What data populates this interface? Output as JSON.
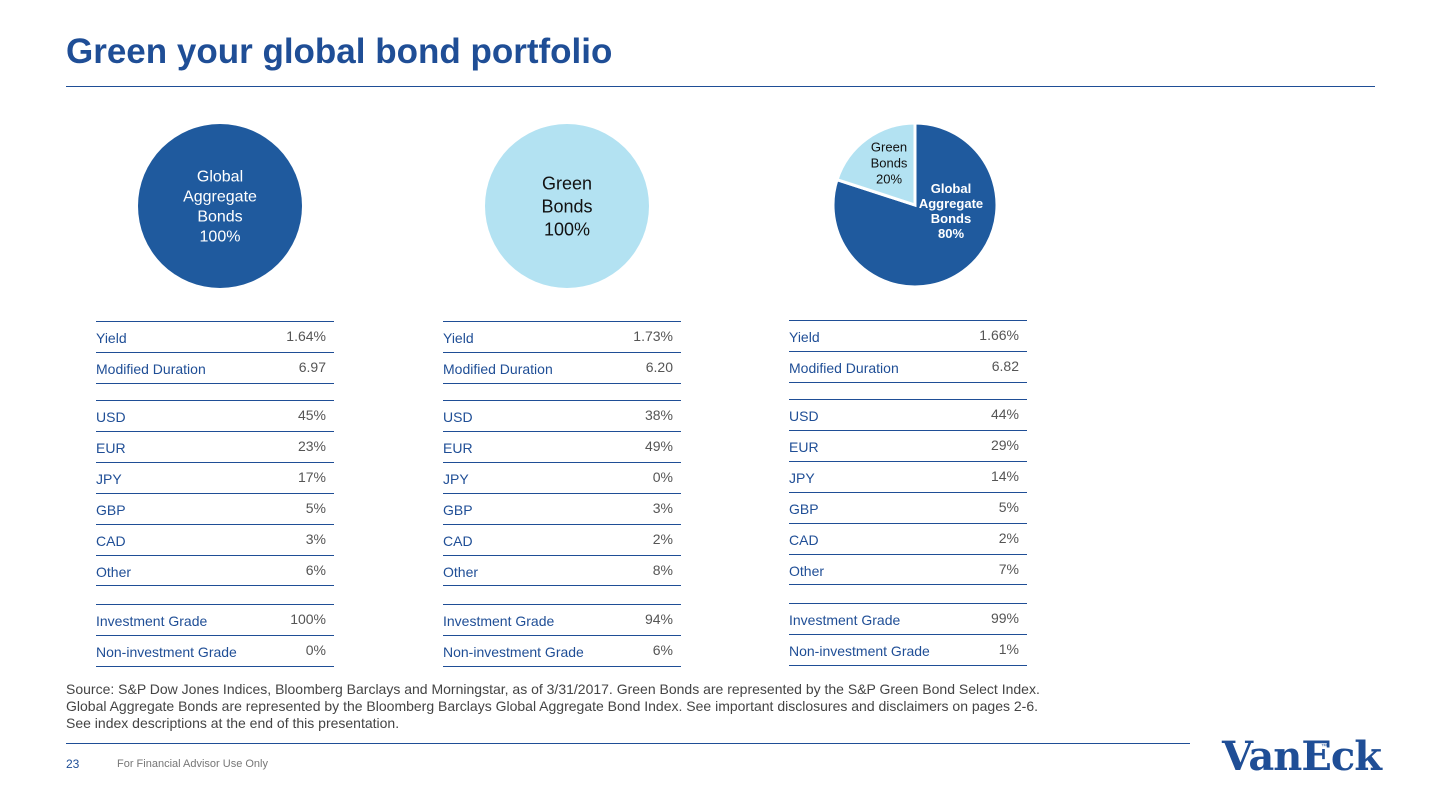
{
  "title": "Green your global bond portfolio",
  "colors": {
    "dark_blue": "#1f5a9e",
    "light_blue": "#b3e2f2",
    "text_blue": "#1f4e96"
  },
  "pies": [
    {
      "type": "pie",
      "slices": [
        {
          "label_lines": [
            "Global",
            "Aggregate",
            "Bonds",
            "100%"
          ],
          "value": 100,
          "color": "#1f5a9e"
        }
      ]
    },
    {
      "type": "pie",
      "slices": [
        {
          "label_lines": [
            "Green",
            "Bonds",
            "100%"
          ],
          "value": 100,
          "color": "#b3e2f2"
        }
      ]
    },
    {
      "type": "pie",
      "slices": [
        {
          "label_lines": [
            "Global",
            "Aggregate",
            "Bonds",
            "80%"
          ],
          "value": 80,
          "color": "#1f5a9e"
        },
        {
          "label_lines": [
            "Green",
            "Bonds",
            "20%"
          ],
          "value": 20,
          "color": "#b3e2f2"
        }
      ]
    }
  ],
  "tables": [
    {
      "metrics": [
        {
          "label": "Yield",
          "value": "1.64%"
        },
        {
          "label": "Modified Duration",
          "value": "6.97"
        }
      ],
      "currencies": [
        {
          "label": "USD",
          "value": "45%"
        },
        {
          "label": "EUR",
          "value": "23%"
        },
        {
          "label": "JPY",
          "value": "17%"
        },
        {
          "label": "GBP",
          "value": "5%"
        },
        {
          "label": "CAD",
          "value": "3%"
        },
        {
          "label": "Other",
          "value": "6%"
        }
      ],
      "grades": [
        {
          "label": "Investment Grade",
          "value": "100%"
        },
        {
          "label": "Non-investment Grade",
          "value": "0%"
        }
      ]
    },
    {
      "metrics": [
        {
          "label": "Yield",
          "value": "1.73%"
        },
        {
          "label": "Modified Duration",
          "value": "6.20"
        }
      ],
      "currencies": [
        {
          "label": "USD",
          "value": "38%"
        },
        {
          "label": "EUR",
          "value": "49%"
        },
        {
          "label": "JPY",
          "value": "0%"
        },
        {
          "label": "GBP",
          "value": "3%"
        },
        {
          "label": "CAD",
          "value": "2%"
        },
        {
          "label": "Other",
          "value": "8%"
        }
      ],
      "grades": [
        {
          "label": "Investment Grade",
          "value": "94%"
        },
        {
          "label": "Non-investment Grade",
          "value": "6%"
        }
      ]
    },
    {
      "metrics": [
        {
          "label": "Yield",
          "value": "1.66%"
        },
        {
          "label": "Modified Duration",
          "value": "6.82"
        }
      ],
      "currencies": [
        {
          "label": "USD",
          "value": "44%"
        },
        {
          "label": "EUR",
          "value": "29%"
        },
        {
          "label": "JPY",
          "value": "14%"
        },
        {
          "label": "GBP",
          "value": "5%"
        },
        {
          "label": "CAD",
          "value": "2%"
        },
        {
          "label": "Other",
          "value": "7%"
        }
      ],
      "grades": [
        {
          "label": "Investment Grade",
          "value": "99%"
        },
        {
          "label": "Non-investment Grade",
          "value": "1%"
        }
      ]
    }
  ],
  "source_lines": [
    "Source: S&P Dow Jones Indices, Bloomberg Barclays and Morningstar, as of 3/31/2017. Green Bonds are represented by the S&P Green Bond Select Index.",
    "Global Aggregate Bonds are represented by the Bloomberg Barclays Global Aggregate Bond Index. See important disclosures and disclaimers on pages 2-6.",
    "See index descriptions at the end of this presentation."
  ],
  "footer": {
    "page_number": "23",
    "note": "For Financial Advisor Use Only",
    "logo_text": "VanEck",
    "trademark": "™"
  }
}
